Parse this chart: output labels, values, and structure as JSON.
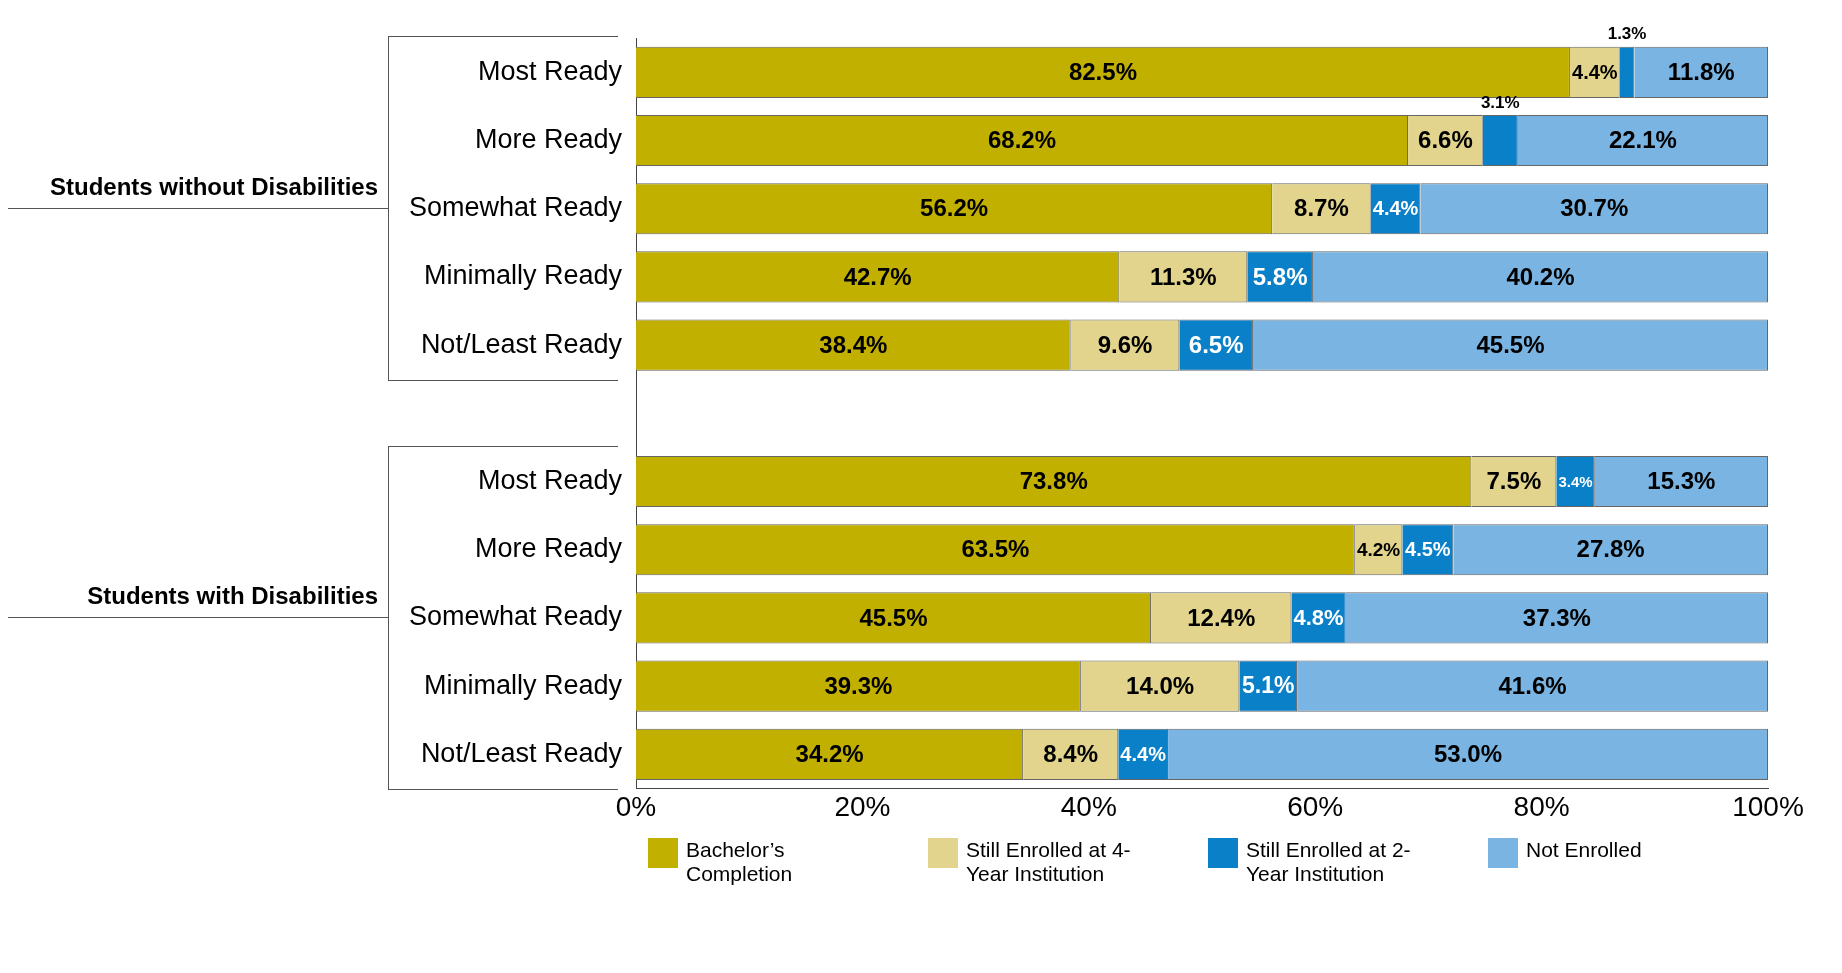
{
  "chart_data": {
    "type": "bar",
    "orientation": "horizontal",
    "stacked": true,
    "categories": [
      "Most Ready",
      "More Ready",
      "Somewhat Ready",
      "Minimally Ready",
      "Not/Least Ready",
      null,
      "Most Ready",
      "More Ready",
      "Somewhat Ready",
      "Minimally Ready",
      "Not/Least Ready"
    ],
    "series": [
      {
        "name": "Bachelor’s Completion",
        "color": "#c2b000",
        "values": [
          82.5,
          68.2,
          56.2,
          42.7,
          38.4,
          null,
          73.8,
          63.5,
          45.5,
          39.3,
          34.2
        ],
        "value_labels": [
          "82.5%",
          "68.2%",
          "56.2%",
          "42.7%",
          "38.4%",
          null,
          "73.8%",
          "63.5%",
          "45.5%",
          "39.3%",
          "34.2%"
        ]
      },
      {
        "name": "Still Enrolled at 4-Year Institution",
        "color": "#e2d48c",
        "values": [
          4.4,
          6.6,
          8.7,
          11.3,
          9.6,
          null,
          7.5,
          4.2,
          12.4,
          14.0,
          8.4
        ],
        "value_labels": [
          "4.4%",
          "6.6%",
          "8.7%",
          "11.3%",
          "9.6%",
          null,
          "7.5%",
          "4.2%",
          "12.4%",
          "14.0%",
          "8.4%"
        ]
      },
      {
        "name": "Still Enrolled at 2-Year Institution",
        "color": "#0a80c8",
        "values": [
          1.3,
          3.1,
          4.4,
          5.8,
          6.5,
          null,
          3.4,
          4.5,
          4.8,
          5.1,
          4.4
        ],
        "value_labels": [
          "1.3%",
          "3.1%",
          "4.4%",
          "5.8%",
          "6.5%",
          null,
          "3.4%",
          "4.5%",
          "4.8%",
          "5.1%",
          "4.4%"
        ]
      },
      {
        "name": "Not Enrolled",
        "color": "#7ab4e2",
        "values": [
          11.8,
          22.1,
          30.7,
          40.2,
          45.5,
          null,
          15.3,
          27.8,
          37.3,
          41.6,
          53.0
        ],
        "value_labels": [
          "11.8%",
          "22.1%",
          "30.7%",
          "40.2%",
          "45.5%",
          null,
          "15.3%",
          "27.8%",
          "37.3%",
          "41.6%",
          "53.0%"
        ]
      }
    ],
    "xlim": [
      0,
      100
    ],
    "xticks": [
      {
        "value": 0,
        "label": "0%"
      },
      {
        "value": 20,
        "label": "20%"
      },
      {
        "value": 40,
        "label": "40%"
      },
      {
        "value": 60,
        "label": "60%"
      },
      {
        "value": 80,
        "label": "80%"
      },
      {
        "value": 100,
        "label": "100%"
      }
    ],
    "annotations": [
      "Students without Disabilities",
      "Students with Disabilities"
    ],
    "grid": false,
    "legend": "bottom"
  }
}
